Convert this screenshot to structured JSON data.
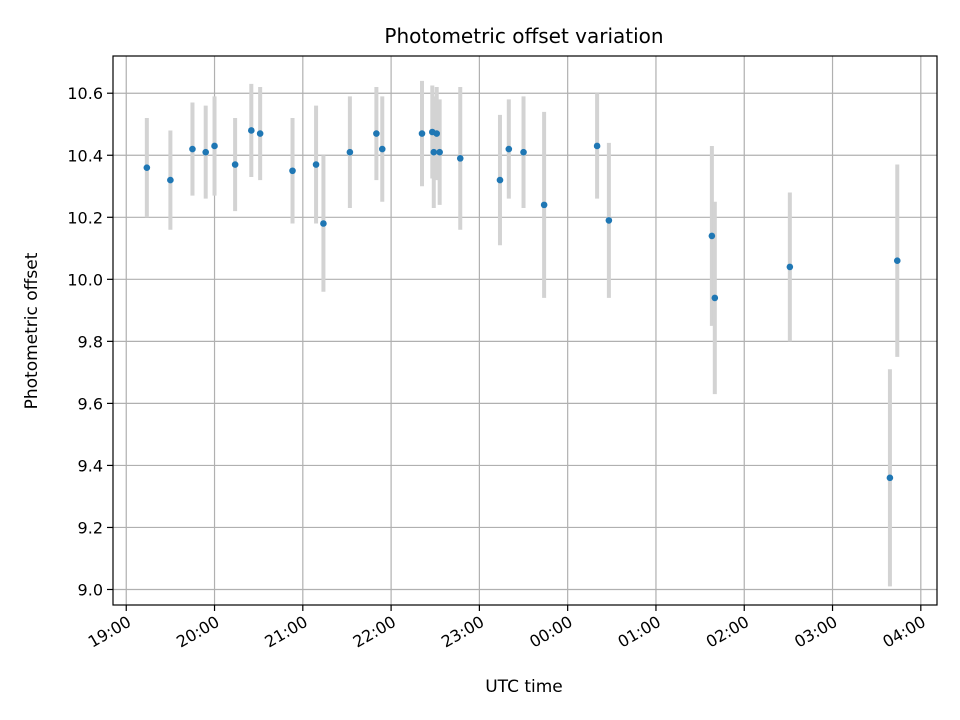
{
  "chart_data": {
    "type": "scatter",
    "title": "Photometric offset variation",
    "xlabel": "UTC time",
    "ylabel": "Photometric offset",
    "x_axis_kind": "time",
    "x_ticks": [
      "19:00",
      "20:00",
      "21:00",
      "22:00",
      "23:00",
      "00:00",
      "01:00",
      "02:00",
      "03:00",
      "04:00"
    ],
    "xlim": [
      "18:51",
      "04:11"
    ],
    "y_ticks": [
      "9.0",
      "9.2",
      "9.4",
      "9.6",
      "9.8",
      "10.0",
      "10.2",
      "10.4",
      "10.6"
    ],
    "ylim": [
      8.95,
      10.72
    ],
    "grid": true,
    "colors": {
      "points": "#1f77b4",
      "errorbars": "#d3d3d3",
      "grid": "#b0b0b0"
    },
    "series": [
      {
        "points": [
          {
            "x": "19:14",
            "y": 10.36,
            "err": 0.16
          },
          {
            "x": "19:30",
            "y": 10.32,
            "err": 0.16
          },
          {
            "x": "19:45",
            "y": 10.42,
            "err": 0.15
          },
          {
            "x": "19:54",
            "y": 10.41,
            "err": 0.15
          },
          {
            "x": "20:00",
            "y": 10.43,
            "err": 0.16
          },
          {
            "x": "20:14",
            "y": 10.37,
            "err": 0.15
          },
          {
            "x": "20:25",
            "y": 10.48,
            "err": 0.15
          },
          {
            "x": "20:31",
            "y": 10.47,
            "err": 0.15
          },
          {
            "x": "20:53",
            "y": 10.35,
            "err": 0.17
          },
          {
            "x": "21:09",
            "y": 10.37,
            "err": 0.19
          },
          {
            "x": "21:14",
            "y": 10.18,
            "err": 0.22
          },
          {
            "x": "21:32",
            "y": 10.41,
            "err": 0.18
          },
          {
            "x": "21:50",
            "y": 10.47,
            "err": 0.15
          },
          {
            "x": "21:54",
            "y": 10.42,
            "err": 0.17
          },
          {
            "x": "22:21",
            "y": 10.47,
            "err": 0.17
          },
          {
            "x": "22:28",
            "y": 10.475,
            "err": 0.15
          },
          {
            "x": "22:29",
            "y": 10.41,
            "err": 0.18
          },
          {
            "x": "22:31",
            "y": 10.47,
            "err": 0.15
          },
          {
            "x": "22:33",
            "y": 10.41,
            "err": 0.17
          },
          {
            "x": "22:47",
            "y": 10.39,
            "err": 0.23
          },
          {
            "x": "23:14",
            "y": 10.32,
            "err": 0.21
          },
          {
            "x": "23:20",
            "y": 10.42,
            "err": 0.16
          },
          {
            "x": "23:30",
            "y": 10.41,
            "err": 0.18
          },
          {
            "x": "23:44",
            "y": 10.24,
            "err": 0.3
          },
          {
            "x": "00:20",
            "y": 10.43,
            "err": 0.17
          },
          {
            "x": "00:28",
            "y": 10.19,
            "err": 0.25
          },
          {
            "x": "01:38",
            "y": 10.14,
            "err": 0.29
          },
          {
            "x": "01:40",
            "y": 9.94,
            "err": 0.31
          },
          {
            "x": "02:31",
            "y": 10.04,
            "err": 0.24
          },
          {
            "x": "03:39",
            "y": 9.36,
            "err": 0.35
          },
          {
            "x": "03:44",
            "y": 10.06,
            "err": 0.31
          }
        ]
      }
    ]
  }
}
